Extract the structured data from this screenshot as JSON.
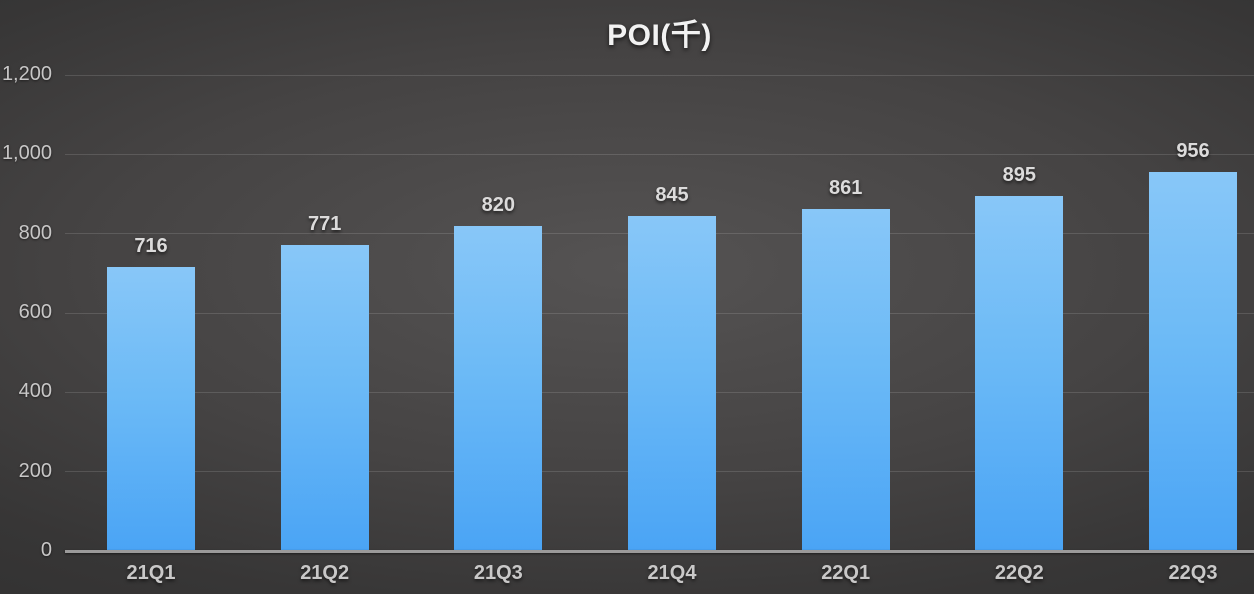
{
  "chart_data": {
    "type": "bar",
    "title": "POI(千)",
    "categories": [
      "21Q1",
      "21Q2",
      "21Q3",
      "21Q4",
      "22Q1",
      "22Q2",
      "22Q3"
    ],
    "values": [
      716,
      771,
      820,
      845,
      861,
      895,
      956
    ],
    "xlabel": "",
    "ylabel": "",
    "ylim": [
      0,
      1200
    ],
    "ytick_interval": 200,
    "ytick_labels": [
      "0",
      "200",
      "400",
      "600",
      "800",
      "1,000",
      "1,200"
    ],
    "grid": true,
    "legend": "none",
    "colors": {
      "bar_gradient_top": "#88c7f8",
      "bar_gradient_bottom": "#4aa4f5",
      "background_center": "#555353",
      "background_edge": "#2b2a2a",
      "gridline": "rgba(255,255,255,0.13)",
      "axis_line": "#9b9a9a",
      "title_text": "#f2f2f2",
      "value_label_text": "#dcdbdb",
      "tick_label_text": "#c8c7c7"
    }
  }
}
